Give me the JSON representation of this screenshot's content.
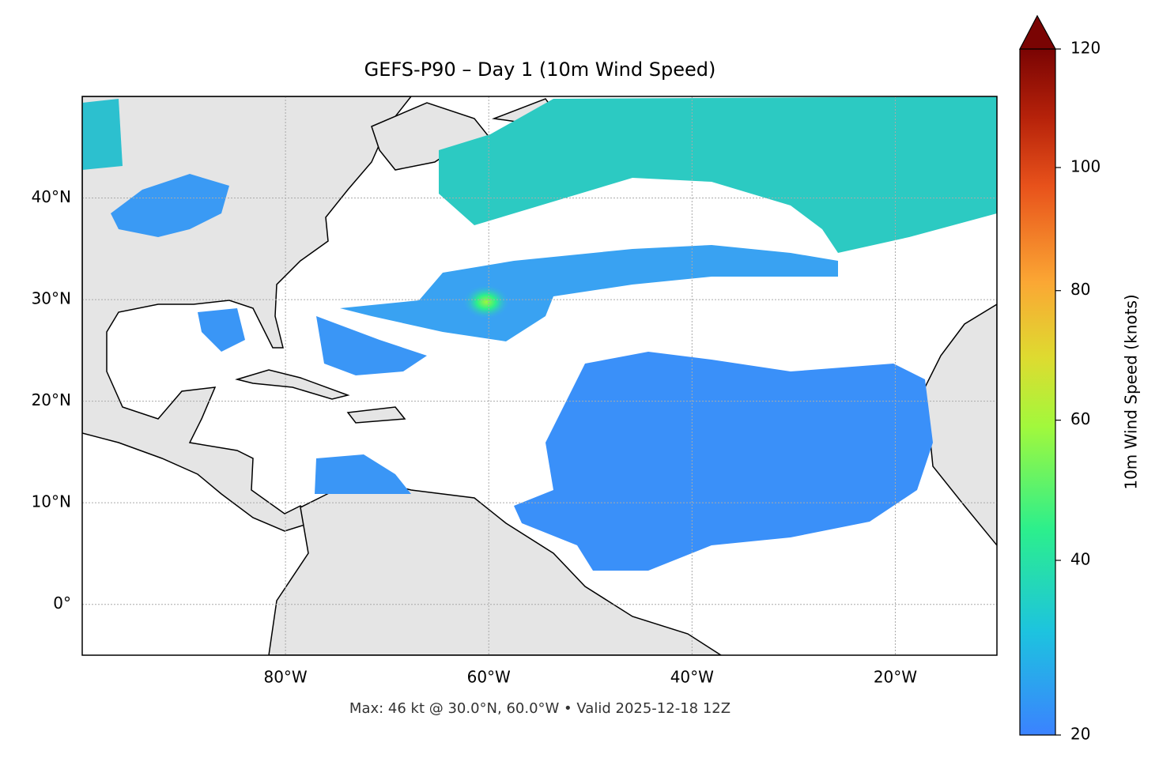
{
  "chart_data": {
    "type": "map",
    "title": "GEFS-P90 – Day 1 (10m Wind Speed)",
    "subtitle": "Max: 46 kt @ 30.0°N, 60.0°W • Valid 2025-12-18 12Z",
    "xlim": [
      -100,
      -10
    ],
    "xticks": [
      {
        "value": -80,
        "label": "80°W"
      },
      {
        "value": -60,
        "label": "60°W"
      },
      {
        "value": -40,
        "label": "40°W"
      },
      {
        "value": -20,
        "label": "20°W"
      }
    ],
    "ylim": [
      -5,
      50
    ],
    "yticks": [
      {
        "value": 0,
        "label": "0°"
      },
      {
        "value": 10,
        "label": "10°N"
      },
      {
        "value": 20,
        "label": "20°N"
      },
      {
        "value": 30,
        "label": "30°N"
      },
      {
        "value": 40,
        "label": "40°N"
      }
    ],
    "grid": true,
    "colorbar": {
      "label": "10m Wind Speed (knots)",
      "lim": [
        20,
        120
      ],
      "ticks": [
        20,
        40,
        60,
        80,
        100,
        120
      ],
      "gamma": 0.85
    }
  }
}
